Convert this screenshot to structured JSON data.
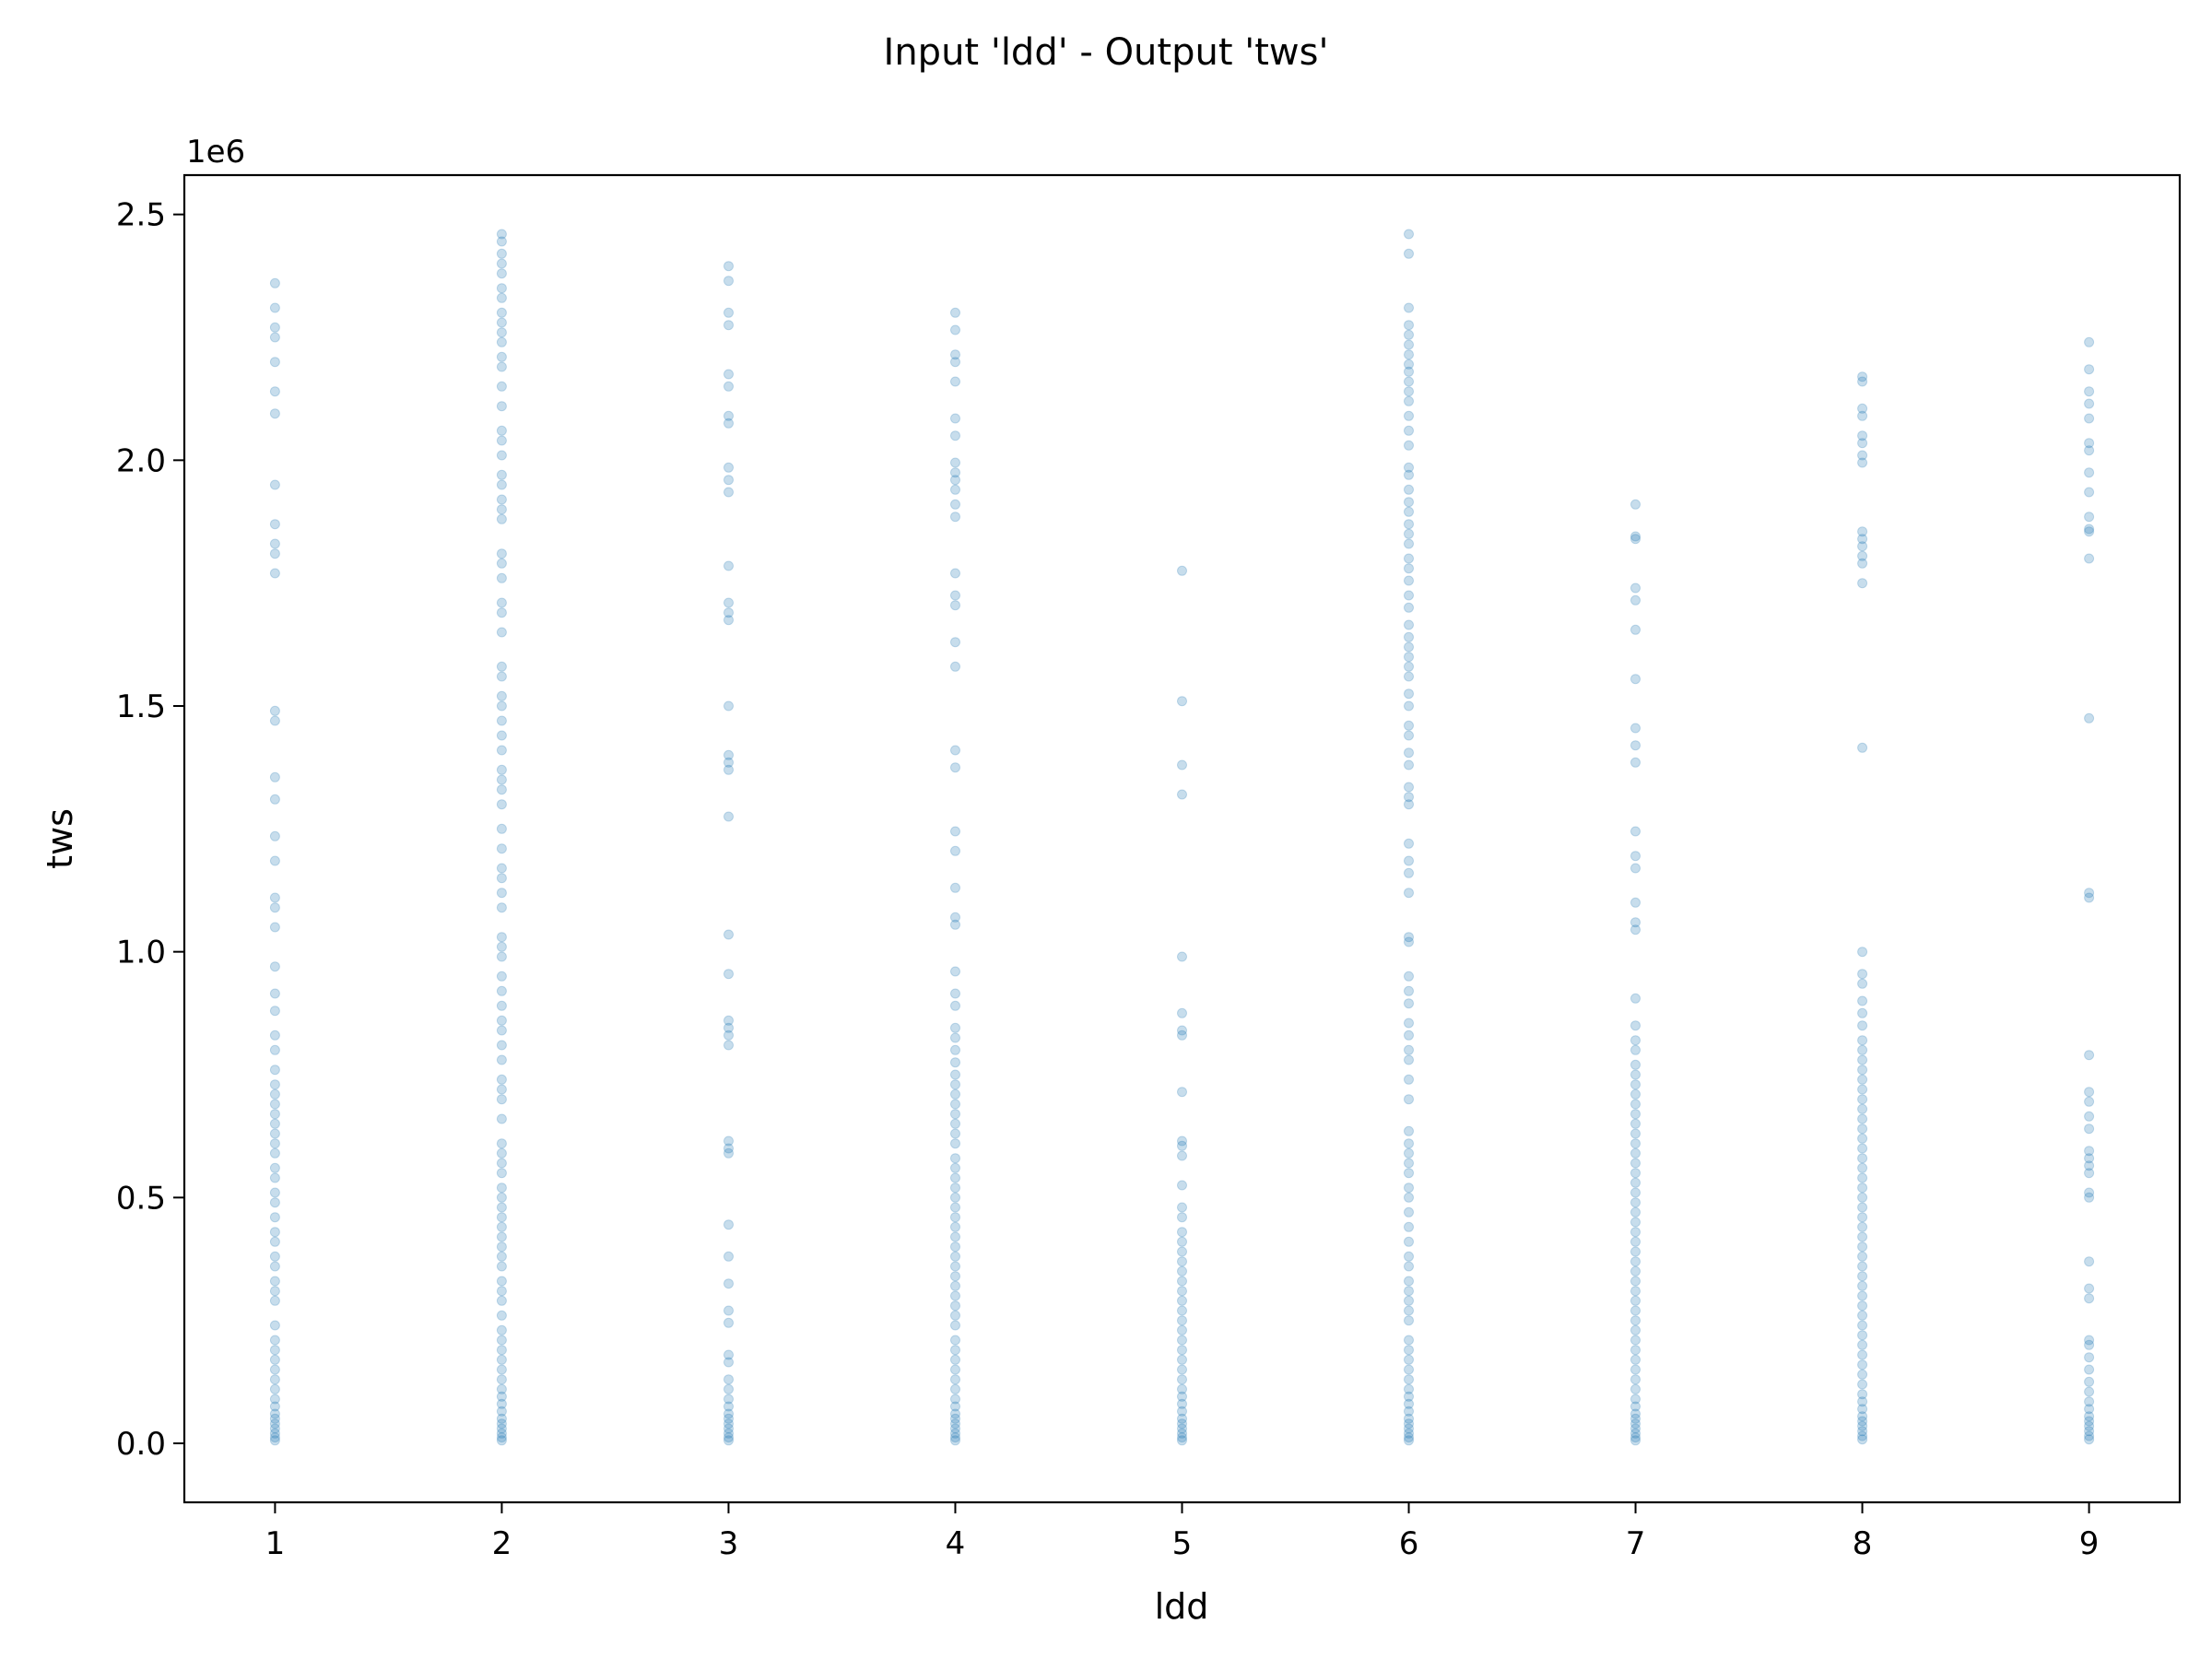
{
  "chart_data": {
    "type": "scatter",
    "title": "Input 'ldd' - Output 'tws'",
    "xlabel": "ldd",
    "ylabel": "tws",
    "y_offset_label": "1e6",
    "x_ticks": [
      1,
      2,
      3,
      4,
      5,
      6,
      7,
      8,
      9
    ],
    "x_tick_labels": [
      "1",
      "2",
      "3",
      "4",
      "5",
      "6",
      "7",
      "8",
      "9"
    ],
    "y_ticks": [
      0,
      500000,
      1000000,
      1500000,
      2000000,
      2500000
    ],
    "y_tick_labels": [
      "0.0",
      "0.5",
      "1.0",
      "1.5",
      "2.0",
      "2.5"
    ],
    "xlim": [
      0.6,
      9.4
    ],
    "ylim": [
      -120000,
      2580000
    ],
    "grid": false,
    "point_color": "#1f77b4",
    "point_alpha": 0.25,
    "series": [
      {
        "x": 1,
        "y": [
          2360000,
          2310000,
          2270000,
          2250000,
          2200000,
          2140000,
          2095000,
          1950000,
          1870000,
          1830000,
          1810000,
          1770000,
          1490000,
          1470000,
          1355000,
          1310000,
          1235000,
          1185000,
          1110000,
          1090000,
          1050000,
          970000,
          915000,
          880000,
          830000,
          800000,
          760000,
          730000,
          710000,
          690000,
          670000,
          650000,
          630000,
          610000,
          590000,
          560000,
          540000,
          510000,
          490000,
          460000,
          430000,
          410000,
          380000,
          360000,
          330000,
          310000,
          290000,
          240000,
          210000,
          190000,
          170000,
          150000,
          130000,
          110000,
          90000,
          75000,
          60000,
          50000,
          40000,
          30000,
          20000,
          12000,
          6000
        ]
      },
      {
        "x": 2,
        "y": [
          2460000,
          2445000,
          2420000,
          2400000,
          2380000,
          2350000,
          2330000,
          2300000,
          2280000,
          2260000,
          2240000,
          2210000,
          2190000,
          2150000,
          2110000,
          2060000,
          2040000,
          2010000,
          1970000,
          1950000,
          1920000,
          1900000,
          1880000,
          1810000,
          1790000,
          1760000,
          1710000,
          1690000,
          1650000,
          1580000,
          1560000,
          1520000,
          1500000,
          1470000,
          1440000,
          1410000,
          1370000,
          1350000,
          1330000,
          1300000,
          1250000,
          1210000,
          1170000,
          1150000,
          1120000,
          1090000,
          1030000,
          1010000,
          990000,
          950000,
          920000,
          890000,
          860000,
          840000,
          810000,
          780000,
          740000,
          720000,
          700000,
          660000,
          610000,
          590000,
          570000,
          550000,
          520000,
          500000,
          480000,
          460000,
          440000,
          420000,
          400000,
          380000,
          360000,
          330000,
          310000,
          290000,
          260000,
          230000,
          210000,
          190000,
          170000,
          150000,
          130000,
          110000,
          95000,
          80000,
          65000,
          50000,
          40000,
          30000,
          20000,
          12000,
          6000
        ]
      },
      {
        "x": 3,
        "y": [
          2395000,
          2365000,
          2300000,
          2275000,
          2175000,
          2150000,
          2090000,
          2075000,
          1985000,
          1960000,
          1935000,
          1785000,
          1710000,
          1690000,
          1675000,
          1500000,
          1400000,
          1385000,
          1370000,
          1275000,
          1035000,
          955000,
          860000,
          845000,
          830000,
          810000,
          615000,
          600000,
          590000,
          445000,
          380000,
          325000,
          270000,
          245000,
          180000,
          165000,
          130000,
          110000,
          90000,
          75000,
          60000,
          50000,
          40000,
          30000,
          20000,
          12000,
          6000
        ]
      },
      {
        "x": 4,
        "y": [
          2300000,
          2265000,
          2215000,
          2200000,
          2160000,
          2085000,
          2050000,
          1995000,
          1975000,
          1960000,
          1940000,
          1910000,
          1885000,
          1770000,
          1725000,
          1705000,
          1630000,
          1580000,
          1410000,
          1375000,
          1245000,
          1205000,
          1130000,
          1070000,
          1055000,
          960000,
          915000,
          890000,
          845000,
          825000,
          800000,
          775000,
          750000,
          730000,
          710000,
          690000,
          670000,
          650000,
          630000,
          610000,
          580000,
          560000,
          540000,
          520000,
          500000,
          480000,
          460000,
          440000,
          420000,
          400000,
          380000,
          360000,
          340000,
          320000,
          300000,
          280000,
          260000,
          240000,
          210000,
          190000,
          170000,
          150000,
          130000,
          110000,
          90000,
          75000,
          60000,
          50000,
          40000,
          30000,
          20000,
          12000,
          6000
        ]
      },
      {
        "x": 5,
        "y": [
          1775000,
          1510000,
          1380000,
          1320000,
          990000,
          875000,
          840000,
          830000,
          715000,
          615000,
          605000,
          585000,
          525000,
          480000,
          460000,
          430000,
          410000,
          390000,
          370000,
          350000,
          330000,
          310000,
          290000,
          270000,
          250000,
          230000,
          210000,
          190000,
          170000,
          150000,
          130000,
          110000,
          95000,
          80000,
          65000,
          50000,
          40000,
          30000,
          20000,
          12000,
          6000
        ]
      },
      {
        "x": 6,
        "y": [
          2460000,
          2420000,
          2310000,
          2275000,
          2255000,
          2235000,
          2215000,
          2195000,
          2180000,
          2160000,
          2140000,
          2120000,
          2090000,
          2060000,
          2030000,
          1985000,
          1970000,
          1940000,
          1915000,
          1895000,
          1870000,
          1850000,
          1830000,
          1800000,
          1780000,
          1755000,
          1725000,
          1700000,
          1665000,
          1640000,
          1620000,
          1600000,
          1580000,
          1560000,
          1525000,
          1500000,
          1460000,
          1440000,
          1405000,
          1380000,
          1335000,
          1315000,
          1300000,
          1220000,
          1185000,
          1160000,
          1120000,
          1030000,
          1020000,
          950000,
          920000,
          895000,
          855000,
          830000,
          800000,
          780000,
          740000,
          700000,
          635000,
          610000,
          590000,
          570000,
          550000,
          520000,
          500000,
          470000,
          440000,
          410000,
          380000,
          360000,
          330000,
          310000,
          290000,
          270000,
          250000,
          210000,
          190000,
          170000,
          150000,
          130000,
          110000,
          95000,
          80000,
          65000,
          50000,
          40000,
          30000,
          20000,
          12000,
          6000
        ]
      },
      {
        "x": 7,
        "y": [
          1910000,
          1845000,
          1840000,
          1740000,
          1715000,
          1655000,
          1555000,
          1455000,
          1420000,
          1385000,
          1245000,
          1195000,
          1170000,
          1100000,
          1060000,
          1045000,
          905000,
          850000,
          820000,
          800000,
          770000,
          750000,
          730000,
          710000,
          690000,
          670000,
          650000,
          630000,
          610000,
          590000,
          570000,
          550000,
          530000,
          510000,
          490000,
          470000,
          450000,
          430000,
          410000,
          390000,
          370000,
          350000,
          330000,
          310000,
          290000,
          270000,
          250000,
          230000,
          210000,
          190000,
          170000,
          150000,
          130000,
          110000,
          90000,
          75000,
          60000,
          50000,
          40000,
          30000,
          20000,
          12000,
          6000
        ]
      },
      {
        "x": 8,
        "y": [
          2170000,
          2160000,
          2105000,
          2090000,
          2050000,
          2035000,
          2010000,
          1995000,
          1855000,
          1840000,
          1825000,
          1805000,
          1790000,
          1750000,
          1415000,
          1000000,
          955000,
          935000,
          900000,
          875000,
          850000,
          820000,
          800000,
          780000,
          760000,
          740000,
          720000,
          700000,
          680000,
          660000,
          640000,
          620000,
          600000,
          580000,
          560000,
          540000,
          520000,
          500000,
          480000,
          460000,
          440000,
          420000,
          400000,
          380000,
          360000,
          340000,
          320000,
          300000,
          280000,
          260000,
          240000,
          220000,
          200000,
          180000,
          160000,
          140000,
          120000,
          100000,
          85000,
          70000,
          55000,
          45000,
          35000,
          25000,
          15000,
          8000
        ]
      },
      {
        "x": 9,
        "y": [
          2240000,
          2185000,
          2140000,
          2115000,
          2085000,
          2035000,
          2020000,
          1975000,
          1935000,
          1885000,
          1860000,
          1855000,
          1800000,
          1475000,
          1120000,
          1110000,
          790000,
          715000,
          695000,
          665000,
          640000,
          595000,
          580000,
          565000,
          550000,
          510000,
          500000,
          370000,
          315000,
          295000,
          210000,
          200000,
          175000,
          150000,
          125000,
          105000,
          85000,
          70000,
          55000,
          45000,
          35000,
          25000,
          15000,
          8000
        ]
      }
    ]
  }
}
